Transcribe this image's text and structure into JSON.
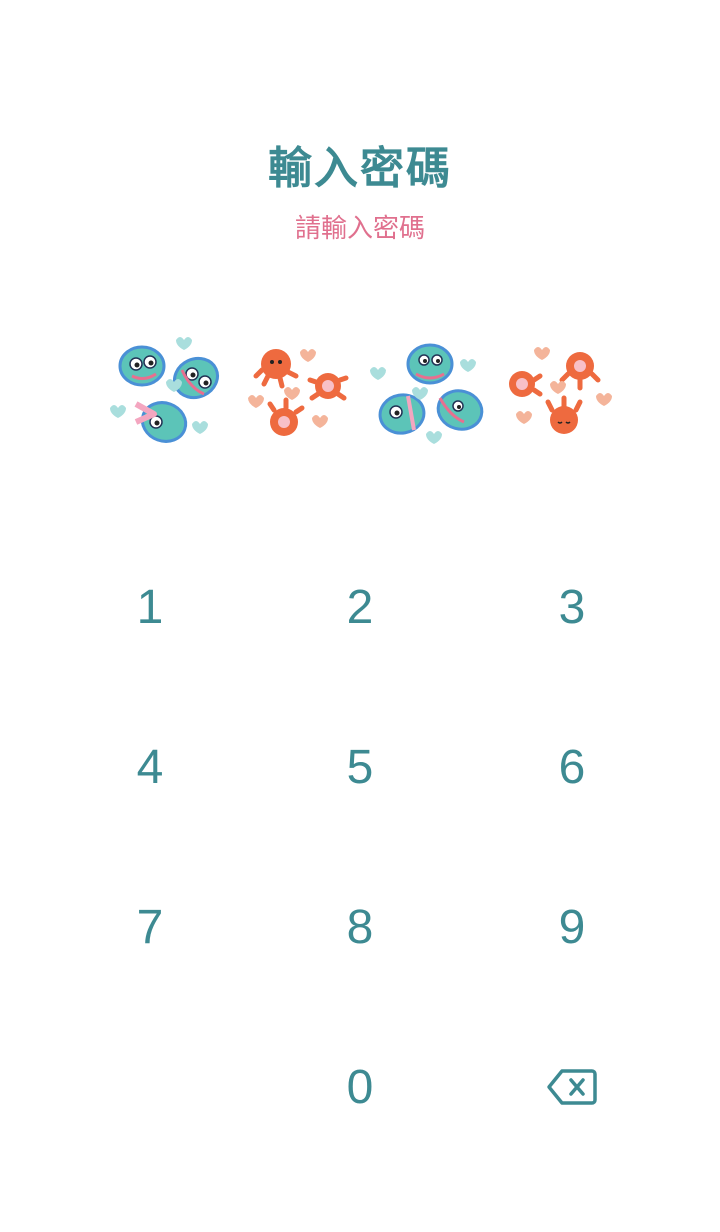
{
  "header": {
    "title": "輸入密碼",
    "subtitle": "請輸入密碼"
  },
  "pin": {
    "digits_entered": 4,
    "slots": [
      {
        "icon": "fish-cluster-icon"
      },
      {
        "icon": "octopus-cluster-icon"
      },
      {
        "icon": "fish-cluster-icon"
      },
      {
        "icon": "octopus-cluster-icon"
      }
    ]
  },
  "keypad": {
    "keys": [
      "1",
      "2",
      "3",
      "4",
      "5",
      "6",
      "7",
      "8",
      "9",
      "0"
    ],
    "backspace_icon": "backspace-icon"
  },
  "colors": {
    "primary": "#3d8a92",
    "subtitle": "#e0708e",
    "fish_body": "#5cc4b8",
    "fish_outline": "#4a90d6",
    "octopus": "#ee6a3f",
    "heart_peach": "#f4b49a",
    "heart_blue": "#a9dedd",
    "background": "#ffffff"
  }
}
